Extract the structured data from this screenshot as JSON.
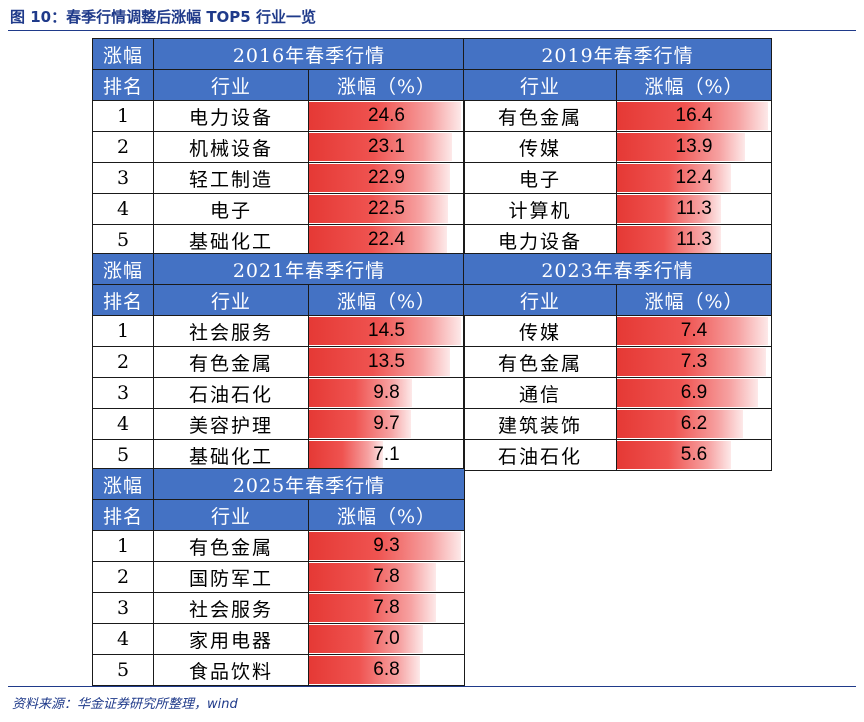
{
  "figure_title": "图 10：春季行情调整后涨幅 TOP5 行业一览",
  "source": "资料来源：华金证券研究所整理，wind",
  "header_labels": {
    "rank_top": "涨幅",
    "rank_bottom": "排名",
    "industry": "行业",
    "pct": "涨幅（%）"
  },
  "colors": {
    "header_bg": "#4472c4",
    "bar_start": "#e53935",
    "bar_end": "#fde9e9",
    "title": "#1f3a8a"
  },
  "blocks": [
    {
      "title": "2016年春季行情",
      "rows": [
        {
          "rank": "1",
          "industry": "电力设备",
          "pct": "24.6",
          "value": 24.6
        },
        {
          "rank": "2",
          "industry": "机械设备",
          "pct": "23.1",
          "value": 23.1
        },
        {
          "rank": "3",
          "industry": "轻工制造",
          "pct": "22.9",
          "value": 22.9
        },
        {
          "rank": "4",
          "industry": "电子",
          "pct": "22.5",
          "value": 22.5
        },
        {
          "rank": "5",
          "industry": "基础化工",
          "pct": "22.4",
          "value": 22.4
        }
      ]
    },
    {
      "title": "2019年春季行情",
      "rows": [
        {
          "rank": "1",
          "industry": "有色金属",
          "pct": "16.4",
          "value": 16.4
        },
        {
          "rank": "2",
          "industry": "传媒",
          "pct": "13.9",
          "value": 13.9
        },
        {
          "rank": "3",
          "industry": "电子",
          "pct": "12.4",
          "value": 12.4
        },
        {
          "rank": "4",
          "industry": "计算机",
          "pct": "11.3",
          "value": 11.3
        },
        {
          "rank": "5",
          "industry": "电力设备",
          "pct": "11.3",
          "value": 11.3
        }
      ]
    },
    {
      "title": "2021年春季行情",
      "rows": [
        {
          "rank": "1",
          "industry": "社会服务",
          "pct": "14.5",
          "value": 14.5
        },
        {
          "rank": "2",
          "industry": "有色金属",
          "pct": "13.5",
          "value": 13.5
        },
        {
          "rank": "3",
          "industry": "石油石化",
          "pct": "9.8",
          "value": 9.8
        },
        {
          "rank": "4",
          "industry": "美容护理",
          "pct": "9.7",
          "value": 9.7
        },
        {
          "rank": "5",
          "industry": "基础化工",
          "pct": "7.1",
          "value": 7.1
        }
      ]
    },
    {
      "title": "2023年春季行情",
      "rows": [
        {
          "rank": "1",
          "industry": "传媒",
          "pct": "7.4",
          "value": 7.4
        },
        {
          "rank": "2",
          "industry": "有色金属",
          "pct": "7.3",
          "value": 7.3
        },
        {
          "rank": "3",
          "industry": "通信",
          "pct": "6.9",
          "value": 6.9
        },
        {
          "rank": "4",
          "industry": "建筑装饰",
          "pct": "6.2",
          "value": 6.2
        },
        {
          "rank": "5",
          "industry": "石油石化",
          "pct": "5.6",
          "value": 5.6
        }
      ]
    },
    {
      "title": "2025年春季行情",
      "rows": [
        {
          "rank": "1",
          "industry": "有色金属",
          "pct": "9.3",
          "value": 9.3
        },
        {
          "rank": "2",
          "industry": "国防军工",
          "pct": "7.8",
          "value": 7.8
        },
        {
          "rank": "3",
          "industry": "社会服务",
          "pct": "7.8",
          "value": 7.8
        },
        {
          "rank": "4",
          "industry": "家用电器",
          "pct": "7.0",
          "value": 7.0
        },
        {
          "rank": "5",
          "industry": "食品饮料",
          "pct": "6.8",
          "value": 6.8
        }
      ]
    }
  ]
}
